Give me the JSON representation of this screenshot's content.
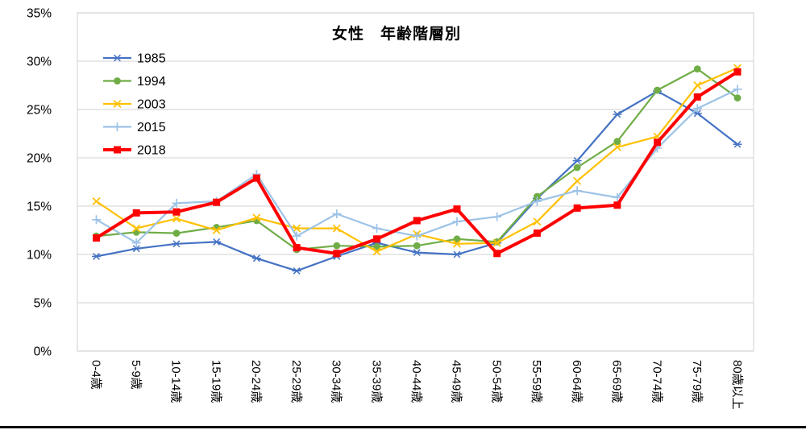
{
  "chart_data": {
    "type": "line",
    "title": "女性　年齢階層別",
    "xlabel": "",
    "ylabel": "",
    "categories": [
      "0-4歳",
      "5-9歳",
      "10-14歳",
      "15-19歳",
      "20-24歳",
      "25-29歳",
      "30-34歳",
      "35-39歳",
      "40-44歳",
      "45-49歳",
      "50-54歳",
      "55-59歳",
      "60-64歳",
      "65-69歳",
      "70-74歳",
      "75-79歳",
      "80歳以上"
    ],
    "series": [
      {
        "name": "1985",
        "color": "#4472C4",
        "marker": "asterisk",
        "line_width": 2.2,
        "values": [
          9.8,
          10.6,
          11.1,
          11.3,
          9.6,
          8.3,
          9.8,
          11.2,
          10.2,
          10.0,
          11.2,
          15.8,
          19.7,
          24.5,
          26.9,
          24.6,
          21.4
        ]
      },
      {
        "name": "1994",
        "color": "#70AD47",
        "marker": "circle",
        "line_width": 2.2,
        "values": [
          11.9,
          12.3,
          12.2,
          12.8,
          13.5,
          10.5,
          10.9,
          10.8,
          10.9,
          11.6,
          11.3,
          16.0,
          19.0,
          21.7,
          27.0,
          29.2,
          26.2
        ]
      },
      {
        "name": "2003",
        "color": "#FFC000",
        "marker": "x",
        "line_width": 2.2,
        "values": [
          15.5,
          12.7,
          13.7,
          12.5,
          13.8,
          12.7,
          12.7,
          10.3,
          12.1,
          11.1,
          11.2,
          13.4,
          17.6,
          21.1,
          22.2,
          27.5,
          29.3
        ]
      },
      {
        "name": "2015",
        "color": "#9DC3E6",
        "marker": "plus",
        "line_width": 2.2,
        "values": [
          13.6,
          11.2,
          15.3,
          15.5,
          18.3,
          11.9,
          14.2,
          12.7,
          11.9,
          13.4,
          13.9,
          15.5,
          16.6,
          15.9,
          21.0,
          25.1,
          27.1
        ]
      },
      {
        "name": "2018",
        "color": "#FF0000",
        "marker": "square",
        "line_width": 4,
        "values": [
          11.7,
          14.3,
          14.4,
          15.4,
          17.9,
          10.7,
          10.1,
          11.6,
          13.5,
          14.7,
          10.1,
          12.2,
          14.8,
          15.1,
          21.6,
          26.3,
          28.9
        ]
      }
    ],
    "y_axis": {
      "min": 0,
      "max": 35,
      "step": 5,
      "tick_labels": [
        "0%",
        "5%",
        "10%",
        "15%",
        "20%",
        "25%",
        "30%",
        "35%"
      ]
    },
    "x_label_rotation_deg": 90,
    "grid": true,
    "gridline_color": "#D9D9D9",
    "plot_border_color": "#D9D9D9",
    "legend_position": "top-left-inside",
    "legend_labels": [
      "1985",
      "1994",
      "2003",
      "2015",
      "2018"
    ]
  }
}
